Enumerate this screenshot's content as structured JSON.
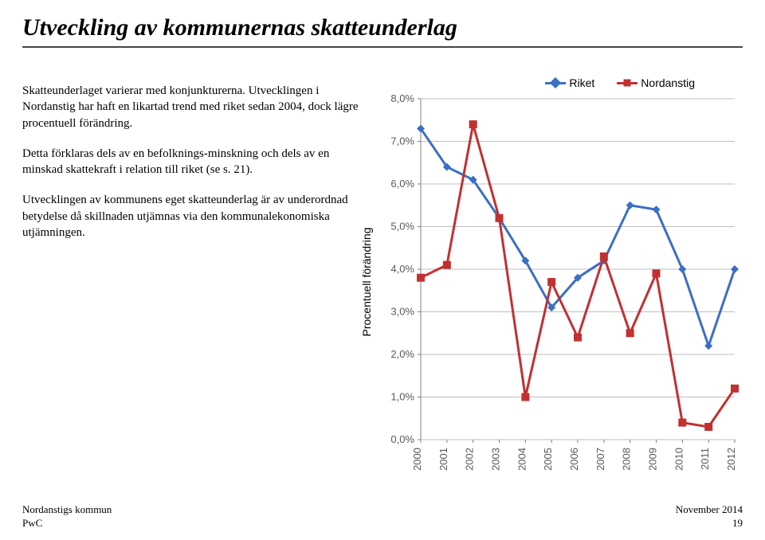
{
  "title": "Utveckling av kommunernas skatteunderlag",
  "paragraphs": {
    "p1": "Skatteunderlaget varierar med konjunkturerna. Utvecklingen i Nordanstig har haft en likartad trend med riket sedan 2004, dock lägre procentuell förändring.",
    "p2": "Detta förklaras dels av en befolknings-minskning och dels av en minskad skattekraft i relation till riket (se s. 21).",
    "p3": "Utvecklingen av kommunens eget skatteunderlag är av underordnad betydelse då skillnaden utjämnas via den kommunalekonomiska utjämningen."
  },
  "footer": {
    "left1": "Nordanstigs kommun",
    "left2": "PwC",
    "right1": "November 2014",
    "right2": "19"
  },
  "chart": {
    "type": "line",
    "ylabel": "Procentuell förändring",
    "legend": [
      {
        "label": "Riket",
        "color": "#3b6fc4",
        "marker": "diamond"
      },
      {
        "label": "Nordanstig",
        "color": "#c23030",
        "marker": "square"
      }
    ],
    "x_categories": [
      "2000",
      "2001",
      "2002",
      "2003",
      "2004",
      "2005",
      "2006",
      "2007",
      "2008",
      "2009",
      "2010",
      "2011",
      "2012"
    ],
    "ylim": [
      0.0,
      8.0
    ],
    "ytick_step": 1.0,
    "ytick_labels": [
      "0,0%",
      "1,0%",
      "2,0%",
      "3,0%",
      "4,0%",
      "5,0%",
      "6,0%",
      "7,0%",
      "8,0%"
    ],
    "series": {
      "riket": [
        7.3,
        6.4,
        6.1,
        5.2,
        4.2,
        3.1,
        3.8,
        4.2,
        5.5,
        5.4,
        4.0,
        2.2,
        4.0
      ],
      "nordanstig": [
        3.8,
        4.1,
        7.4,
        5.2,
        1.0,
        3.7,
        2.4,
        4.3,
        2.5,
        3.9,
        0.4,
        0.3,
        1.2
      ]
    },
    "colors": {
      "riket": "#3b6fc4",
      "nordanstig": "#c23030",
      "grid": "#bfbfbf",
      "axis": "#808080",
      "text": "#595959",
      "background": "#ffffff"
    },
    "line_width": 3,
    "marker_size": 10,
    "font_size_axis": 13
  }
}
